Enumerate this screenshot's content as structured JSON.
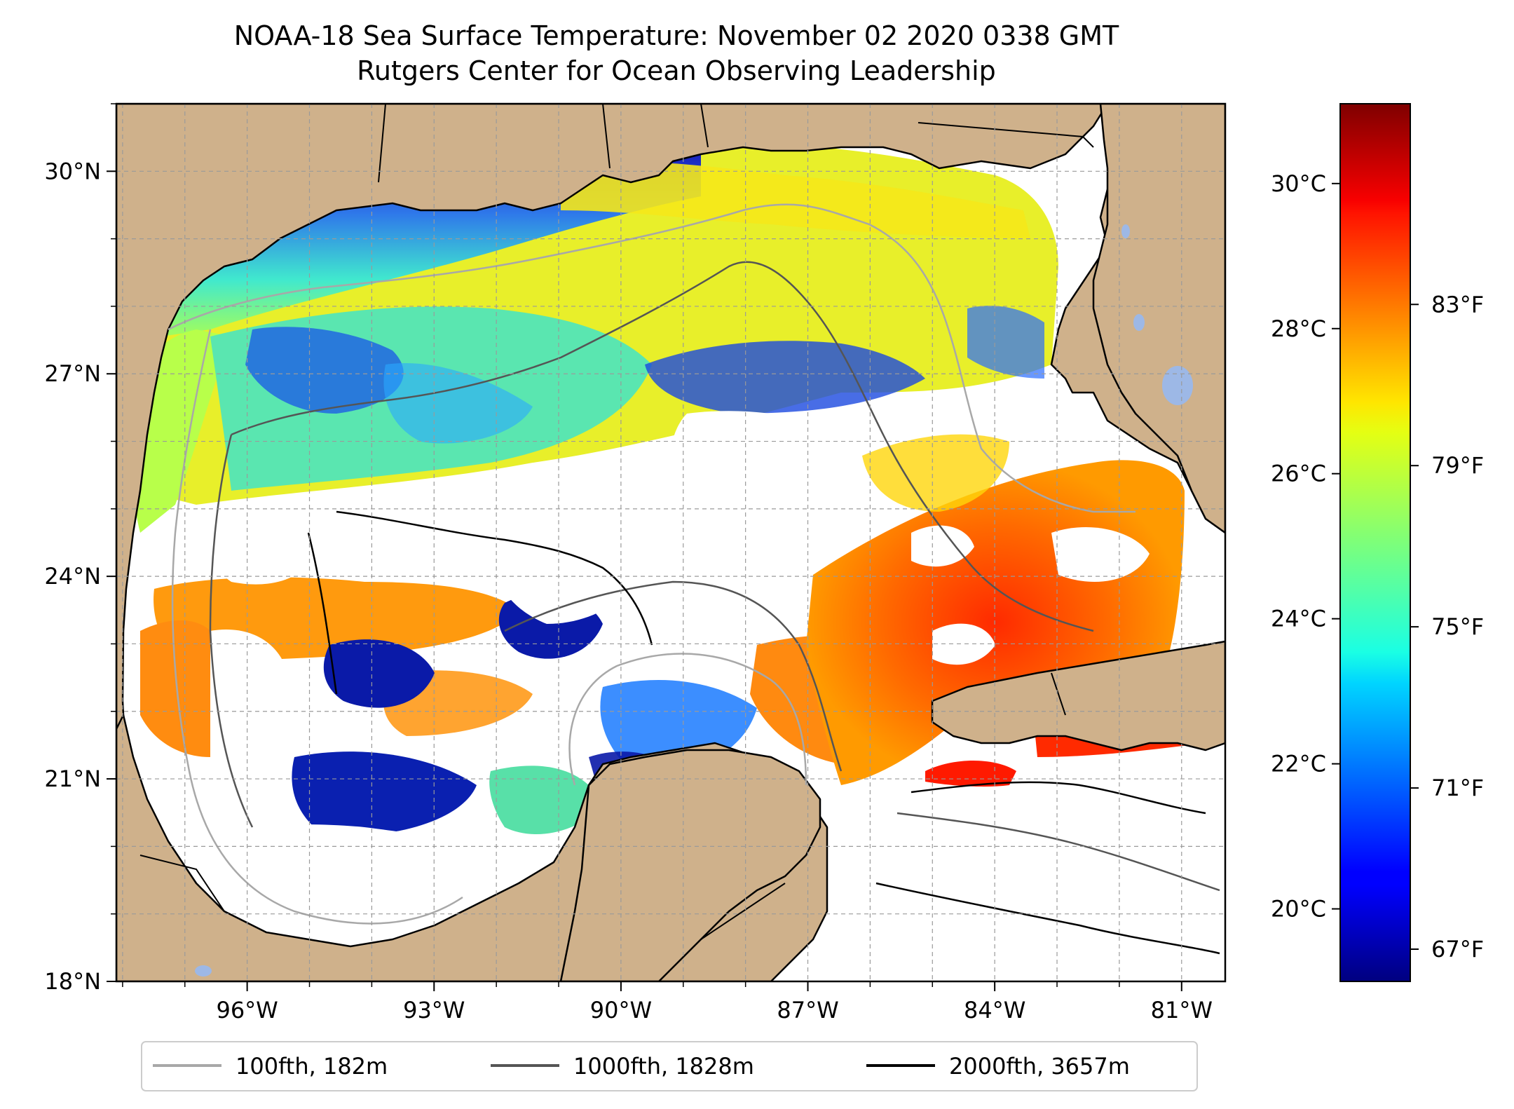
{
  "title": {
    "line1": "NOAA-18 Sea Surface Temperature: November 02 2020 0338 GMT",
    "line2": "Rutgers Center for Ocean Observing Leadership"
  },
  "map": {
    "region": "Gulf of Mexico",
    "lat_range": [
      18,
      31
    ],
    "lon_range": [
      -98.1,
      -80.3
    ],
    "lat_ticks": [
      {
        "value": 30,
        "label": "30°N"
      },
      {
        "value": 27,
        "label": "27°N"
      },
      {
        "value": 24,
        "label": "24°N"
      },
      {
        "value": 21,
        "label": "21°N"
      },
      {
        "value": 18,
        "label": "18°N"
      }
    ],
    "lon_ticks": [
      {
        "value": -96,
        "label": "96°W"
      },
      {
        "value": -93,
        "label": "93°W"
      },
      {
        "value": -90,
        "label": "90°W"
      },
      {
        "value": -87,
        "label": "87°W"
      },
      {
        "value": -84,
        "label": "84°W"
      },
      {
        "value": -81,
        "label": "81°W"
      }
    ],
    "gridlines": true,
    "land_color": "#cfb18b",
    "ocean_no_data_color": "#ffffff",
    "lake_color": "#9db8e6"
  },
  "colorbar": {
    "colormap": "jet",
    "range_c": [
      19.0,
      31.1
    ],
    "celsius_ticks": [
      {
        "value": 30,
        "label": "30°C"
      },
      {
        "value": 28,
        "label": "28°C"
      },
      {
        "value": 26,
        "label": "26°C"
      },
      {
        "value": 24,
        "label": "24°C"
      },
      {
        "value": 22,
        "label": "22°C"
      },
      {
        "value": 20,
        "label": "20°C"
      }
    ],
    "fahrenheit_ticks": [
      {
        "value": 83,
        "label": "83°F"
      },
      {
        "value": 79,
        "label": "79°F"
      },
      {
        "value": 75,
        "label": "75°F"
      },
      {
        "value": 71,
        "label": "71°F"
      },
      {
        "value": 67,
        "label": "67°F"
      }
    ]
  },
  "legend": {
    "position": "bottom",
    "items": [
      {
        "label": "100fth, 182m",
        "color": "#a8a8a8"
      },
      {
        "label": "1000fth, 1828m",
        "color": "#555555"
      },
      {
        "label": "2000fth, 3657m",
        "color": "#000000"
      }
    ]
  }
}
